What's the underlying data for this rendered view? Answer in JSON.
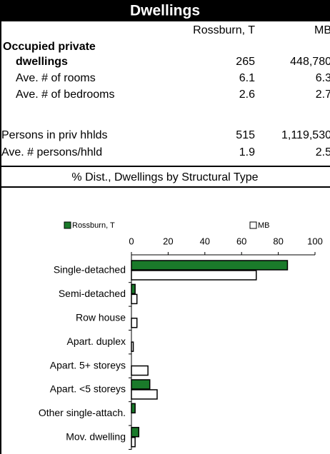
{
  "header": {
    "title": "Dwellings"
  },
  "table": {
    "columns": [
      "Rossburn, T",
      "MB"
    ],
    "rows": [
      {
        "label": "Occupied private"
      },
      {
        "label": "dwellings",
        "values": [
          "265",
          "448,780"
        ]
      },
      {
        "label": "Ave. # of rooms",
        "values": [
          "6.1",
          "6.3"
        ]
      },
      {
        "label": "Ave. # of bedrooms",
        "values": [
          "2.6",
          "2.7"
        ]
      },
      {
        "label": "Persons in priv hhlds",
        "values": [
          "515",
          "1,119,530"
        ]
      },
      {
        "label": "Ave. # persons/hhld",
        "values": [
          "1.9",
          "2.5"
        ]
      }
    ]
  },
  "chart_data": {
    "type": "bar",
    "orientation": "horizontal",
    "title": "% Dist., Dwellings by Structural Type",
    "categories": [
      "Single-detached",
      "Semi-detached",
      "Row house",
      "Apart. duplex",
      "Apart. 5+ storeys",
      "Apart. <5 storeys",
      "Other single-attach.",
      "Mov. dwelling"
    ],
    "series": [
      {
        "name": "Rossburn, T",
        "color": "#1a7a2a",
        "values": [
          85,
          2,
          0,
          0,
          0,
          10,
          2,
          4
        ]
      },
      {
        "name": "MB",
        "color": "#ffffff",
        "values": [
          68,
          3,
          3,
          1,
          9,
          14,
          0,
          2
        ]
      }
    ],
    "xlim": [
      0,
      100
    ],
    "xticks": [
      0,
      20,
      40,
      60,
      80,
      100
    ]
  }
}
